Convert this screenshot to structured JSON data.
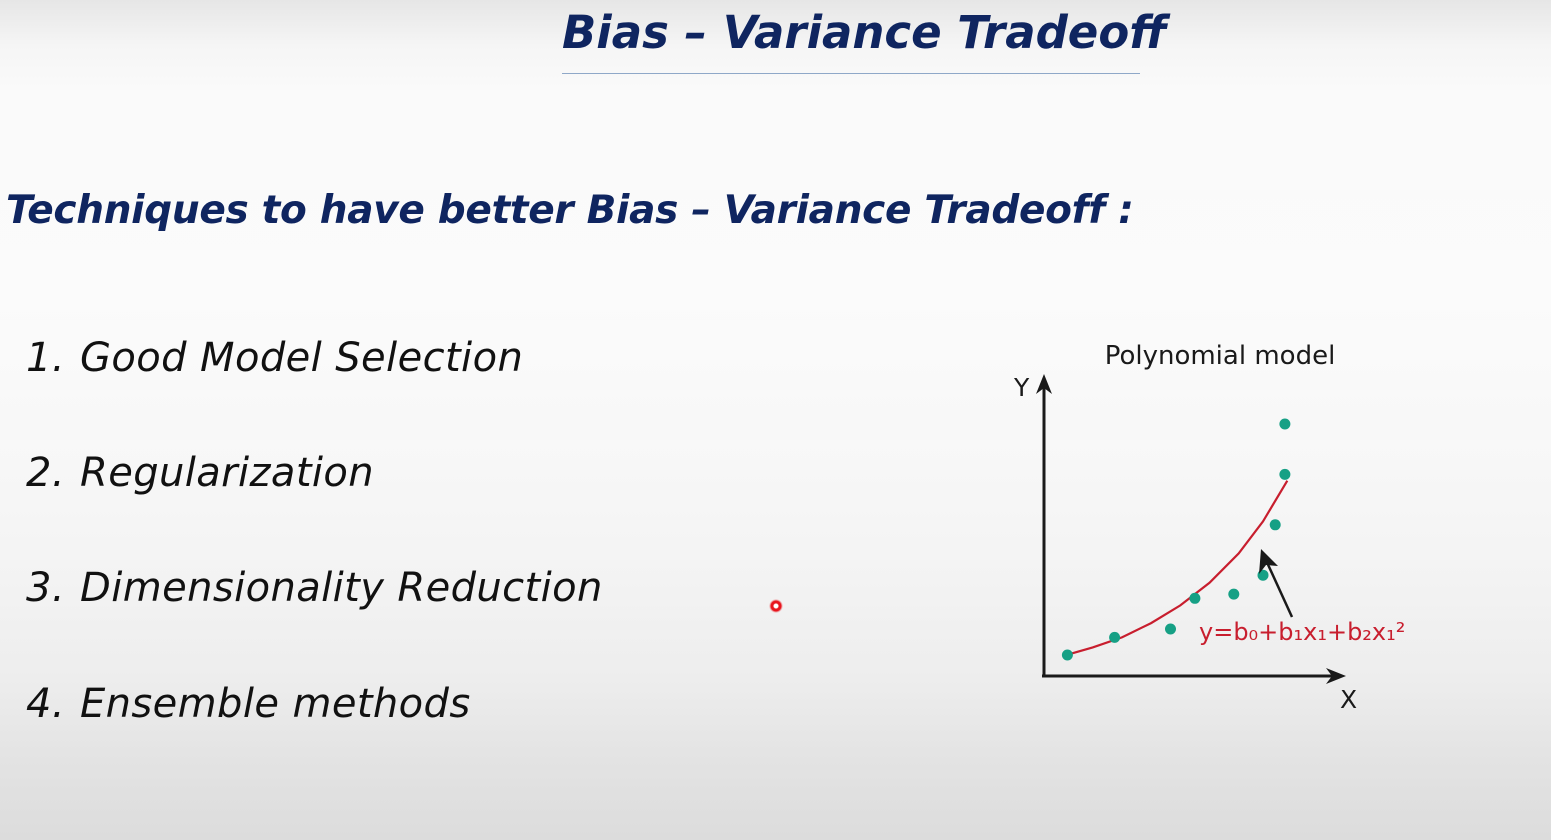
{
  "slide": {
    "title": "Bias – Variance Tradeoff",
    "subtitle": "Techniques to have better Bias – Variance Tradeoff :"
  },
  "techniques": [
    {
      "number": "1.",
      "label": "Good Model Selection"
    },
    {
      "number": "2.",
      "label": "Regularization"
    },
    {
      "number": "3.",
      "label": "Dimensionality Reduction"
    },
    {
      "number": "4.",
      "label": "Ensemble methods"
    }
  ],
  "colors": {
    "heading": "#0f2560",
    "curve": "#c81e2e",
    "points": "#16a085",
    "pointer": "#e8141d"
  },
  "chart_data": {
    "type": "scatter",
    "title": "Polynomial model",
    "xlabel": "X",
    "ylabel": "Y",
    "equation": "y=b₀+b₁x₁+b₂x₁²",
    "ticks": "none",
    "points": [
      {
        "x": 0.48,
        "y": 0.5
      },
      {
        "x": 1.45,
        "y": 0.92
      },
      {
        "x": 2.6,
        "y": 1.12
      },
      {
        "x": 3.1,
        "y": 1.85
      },
      {
        "x": 3.9,
        "y": 1.95
      },
      {
        "x": 4.5,
        "y": 2.4
      },
      {
        "x": 4.75,
        "y": 3.6
      },
      {
        "x": 4.95,
        "y": 4.8
      },
      {
        "x": 4.95,
        "y": 6.0
      }
    ],
    "fit_curve": {
      "type": "polynomial-degree-2",
      "x": [
        0.4,
        1.0,
        1.6,
        2.2,
        2.8,
        3.4,
        4.0,
        4.5,
        5.0
      ],
      "y": [
        0.48,
        0.68,
        0.92,
        1.26,
        1.68,
        2.22,
        2.92,
        3.68,
        4.65
      ]
    },
    "xlim": [
      0,
      6
    ],
    "ylim": [
      0,
      7
    ],
    "grid": false
  }
}
